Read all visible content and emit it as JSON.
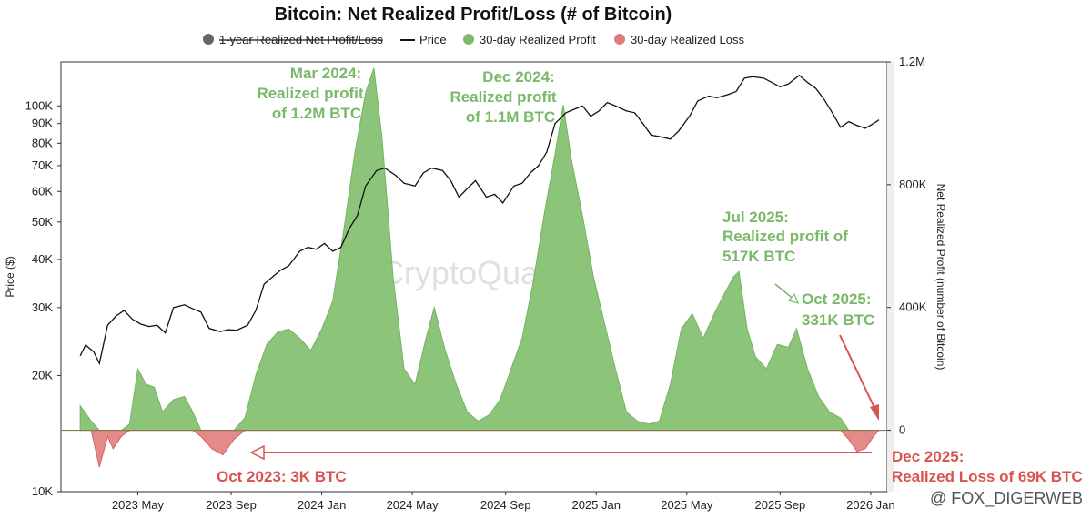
{
  "chart_data": {
    "type": "area",
    "title": "Bitcoin: Net Realized Profit/Loss (# of Bitcoin)",
    "legend": [
      {
        "key": "one_year",
        "label": "1-year Realized Net Profit/Loss",
        "color": "#666666",
        "struck": true
      },
      {
        "key": "price",
        "label": "Price",
        "color": "#111111"
      },
      {
        "key": "profit",
        "label": "30-day Realized Profit",
        "color": "#7dbb6b"
      },
      {
        "key": "loss",
        "label": "30-day Realized Loss",
        "color": "#e07b7b"
      }
    ],
    "x_ticks": [
      "2023 May",
      "2023 Sep",
      "2024 Jan",
      "2024 May",
      "2024 Sep",
      "2025 Jan",
      "2025 May",
      "2025 Sep",
      "2026 Jan"
    ],
    "x_range": [
      "2023-02",
      "2026-01"
    ],
    "left_axis": {
      "label": "Price ($)",
      "scale": "log",
      "range": [
        10000,
        130000
      ],
      "ticks": [
        {
          "value": 10000,
          "label": "10K"
        },
        {
          "value": 20000,
          "label": "20K"
        },
        {
          "value": 30000,
          "label": "30K"
        },
        {
          "value": 40000,
          "label": "40K"
        },
        {
          "value": 50000,
          "label": "50K"
        },
        {
          "value": 60000,
          "label": "60K"
        },
        {
          "value": 70000,
          "label": "70K"
        },
        {
          "value": 80000,
          "label": "80K"
        },
        {
          "value": 90000,
          "label": "90K"
        },
        {
          "value": 100000,
          "label": "100K"
        }
      ]
    },
    "right_axis": {
      "label": "Net Realized Profit (number of Bitcoin)",
      "range": [
        -200000,
        1200000
      ],
      "ticks": [
        {
          "value": 0,
          "label": "0"
        },
        {
          "value": 400000,
          "label": "400K"
        },
        {
          "value": 800000,
          "label": "800K"
        },
        {
          "value": 1200000,
          "label": "1.2M"
        }
      ]
    },
    "price_series": [
      [
        2023.12,
        22500
      ],
      [
        2023.14,
        24000
      ],
      [
        2023.17,
        23000
      ],
      [
        2023.19,
        21500
      ],
      [
        2023.22,
        27000
      ],
      [
        2023.25,
        28500
      ],
      [
        2023.28,
        29500
      ],
      [
        2023.31,
        28000
      ],
      [
        2023.34,
        27200
      ],
      [
        2023.37,
        26800
      ],
      [
        2023.4,
        27000
      ],
      [
        2023.43,
        25800
      ],
      [
        2023.46,
        30000
      ],
      [
        2023.5,
        30500
      ],
      [
        2023.53,
        29800
      ],
      [
        2023.56,
        29200
      ],
      [
        2023.59,
        26500
      ],
      [
        2023.63,
        26000
      ],
      [
        2023.66,
        26300
      ],
      [
        2023.69,
        26200
      ],
      [
        2023.73,
        27000
      ],
      [
        2023.76,
        29500
      ],
      [
        2023.79,
        34500
      ],
      [
        2023.82,
        36000
      ],
      [
        2023.85,
        37500
      ],
      [
        2023.88,
        38500
      ],
      [
        2023.92,
        42000
      ],
      [
        2023.95,
        43000
      ],
      [
        2023.98,
        42500
      ],
      [
        2024.01,
        44000
      ],
      [
        2024.04,
        42000
      ],
      [
        2024.07,
        43000
      ],
      [
        2024.1,
        48000
      ],
      [
        2024.13,
        52000
      ],
      [
        2024.16,
        62000
      ],
      [
        2024.2,
        68000
      ],
      [
        2024.23,
        69000
      ],
      [
        2024.27,
        66000
      ],
      [
        2024.3,
        63000
      ],
      [
        2024.34,
        62000
      ],
      [
        2024.37,
        67000
      ],
      [
        2024.4,
        69000
      ],
      [
        2024.44,
        68000
      ],
      [
        2024.47,
        64000
      ],
      [
        2024.5,
        58000
      ],
      [
        2024.53,
        61000
      ],
      [
        2024.56,
        64000
      ],
      [
        2024.6,
        58000
      ],
      [
        2024.63,
        59000
      ],
      [
        2024.66,
        56000
      ],
      [
        2024.7,
        62000
      ],
      [
        2024.73,
        63000
      ],
      [
        2024.76,
        67000
      ],
      [
        2024.79,
        70000
      ],
      [
        2024.82,
        76000
      ],
      [
        2024.85,
        90000
      ],
      [
        2024.89,
        96000
      ],
      [
        2024.92,
        98000
      ],
      [
        2024.95,
        100000
      ],
      [
        2024.98,
        94000
      ],
      [
        2025.01,
        97000
      ],
      [
        2025.04,
        102000
      ],
      [
        2025.07,
        100000
      ],
      [
        2025.11,
        97000
      ],
      [
        2025.14,
        96000
      ],
      [
        2025.17,
        90000
      ],
      [
        2025.2,
        84000
      ],
      [
        2025.24,
        83000
      ],
      [
        2025.27,
        82000
      ],
      [
        2025.3,
        86000
      ],
      [
        2025.34,
        94000
      ],
      [
        2025.37,
        103000
      ],
      [
        2025.41,
        106000
      ],
      [
        2025.44,
        105000
      ],
      [
        2025.48,
        107000
      ],
      [
        2025.51,
        109000
      ],
      [
        2025.54,
        118000
      ],
      [
        2025.57,
        119000
      ],
      [
        2025.61,
        118000
      ],
      [
        2025.64,
        115000
      ],
      [
        2025.67,
        112000
      ],
      [
        2025.7,
        114000
      ],
      [
        2025.74,
        120000
      ],
      [
        2025.77,
        115000
      ],
      [
        2025.8,
        111000
      ],
      [
        2025.83,
        104000
      ],
      [
        2025.86,
        96000
      ],
      [
        2025.89,
        88000
      ],
      [
        2025.92,
        91000
      ],
      [
        2025.95,
        89000
      ],
      [
        2025.98,
        87500
      ],
      [
        2026.01,
        90000
      ],
      [
        2026.03,
        92000
      ]
    ],
    "profit_loss_series": [
      [
        2023.12,
        80000
      ],
      [
        2023.16,
        30000
      ],
      [
        2023.19,
        -120000
      ],
      [
        2023.22,
        -20000
      ],
      [
        2023.24,
        -60000
      ],
      [
        2023.27,
        -20000
      ],
      [
        2023.3,
        20000
      ],
      [
        2023.33,
        200000
      ],
      [
        2023.36,
        150000
      ],
      [
        2023.39,
        140000
      ],
      [
        2023.42,
        60000
      ],
      [
        2023.46,
        100000
      ],
      [
        2023.5,
        110000
      ],
      [
        2023.53,
        60000
      ],
      [
        2023.56,
        -20000
      ],
      [
        2023.6,
        -60000
      ],
      [
        2023.64,
        -80000
      ],
      [
        2023.68,
        -30000
      ],
      [
        2023.72,
        40000
      ],
      [
        2023.76,
        180000
      ],
      [
        2023.8,
        280000
      ],
      [
        2023.84,
        320000
      ],
      [
        2023.88,
        330000
      ],
      [
        2023.92,
        300000
      ],
      [
        2023.96,
        260000
      ],
      [
        2024.0,
        330000
      ],
      [
        2024.04,
        420000
      ],
      [
        2024.08,
        650000
      ],
      [
        2024.12,
        900000
      ],
      [
        2024.16,
        1100000
      ],
      [
        2024.19,
        1180000
      ],
      [
        2024.22,
        950000
      ],
      [
        2024.26,
        500000
      ],
      [
        2024.3,
        200000
      ],
      [
        2024.34,
        150000
      ],
      [
        2024.38,
        300000
      ],
      [
        2024.41,
        400000
      ],
      [
        2024.45,
        260000
      ],
      [
        2024.49,
        150000
      ],
      [
        2024.53,
        60000
      ],
      [
        2024.57,
        30000
      ],
      [
        2024.61,
        50000
      ],
      [
        2024.65,
        100000
      ],
      [
        2024.69,
        200000
      ],
      [
        2024.73,
        300000
      ],
      [
        2024.77,
        480000
      ],
      [
        2024.81,
        700000
      ],
      [
        2024.85,
        900000
      ],
      [
        2024.88,
        1060000
      ],
      [
        2024.91,
        880000
      ],
      [
        2024.95,
        700000
      ],
      [
        2024.99,
        500000
      ],
      [
        2025.03,
        350000
      ],
      [
        2025.07,
        200000
      ],
      [
        2025.11,
        60000
      ],
      [
        2025.15,
        30000
      ],
      [
        2025.19,
        20000
      ],
      [
        2025.23,
        30000
      ],
      [
        2025.27,
        150000
      ],
      [
        2025.31,
        330000
      ],
      [
        2025.35,
        380000
      ],
      [
        2025.39,
        300000
      ],
      [
        2025.43,
        380000
      ],
      [
        2025.47,
        450000
      ],
      [
        2025.5,
        500000
      ],
      [
        2025.52,
        517000
      ],
      [
        2025.55,
        330000
      ],
      [
        2025.58,
        240000
      ],
      [
        2025.62,
        200000
      ],
      [
        2025.66,
        280000
      ],
      [
        2025.7,
        270000
      ],
      [
        2025.73,
        331000
      ],
      [
        2025.77,
        200000
      ],
      [
        2025.81,
        110000
      ],
      [
        2025.85,
        60000
      ],
      [
        2025.89,
        40000
      ],
      [
        2025.92,
        -30000
      ],
      [
        2025.95,
        -69000
      ],
      [
        2025.98,
        -60000
      ],
      [
        2026.01,
        -20000
      ],
      [
        2026.03,
        0
      ]
    ],
    "one_year_series": []
  },
  "annotations": {
    "mar2024": [
      "Mar 2024:",
      "Realized profit",
      "of 1.2M BTC"
    ],
    "dec2024": [
      "Dec 2024:",
      "Realized profit",
      "of 1.1M BTC"
    ],
    "jul2025": [
      "Jul 2025:",
      "Realized profit of",
      "517K BTC"
    ],
    "oct2025": [
      "Oct 2025:",
      "331K BTC"
    ],
    "oct2023": "Oct 2023: 3K BTC",
    "dec2025": [
      "Dec 2025:",
      "Realized Loss of 69K BTC"
    ]
  },
  "watermark": "CryptoQuant",
  "credit": "@ FOX_DIGERWEB"
}
